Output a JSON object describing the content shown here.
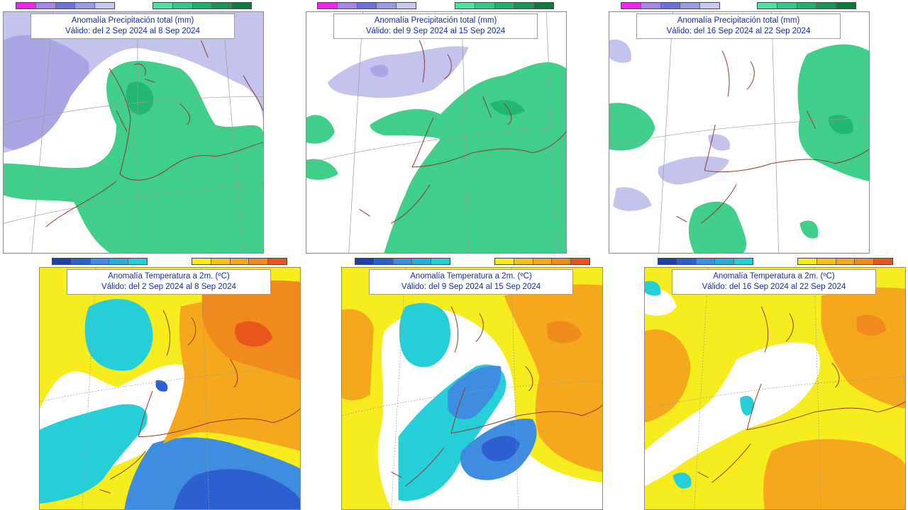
{
  "colors": {
    "precip_wet_light": "#3fcf8a",
    "precip_wet_medium": "#22b872",
    "precip_dry_light": "#c3c3ee",
    "precip_dry_medium": "#a9a6e3",
    "temp_warm_light": "#f7ec1e",
    "temp_warm_medium": "#f5a81e",
    "temp_warm_strong": "#f08a1c",
    "temp_warm_extreme": "#e8561c",
    "temp_cold_light": "#26cfd8",
    "temp_cold_medium": "#3e8de0",
    "temp_cold_strong": "#2d5fd0",
    "coastline": "#8c3a2a",
    "graticule": "#9a9a9a"
  },
  "precip_legend": {
    "dry_colors": [
      "#ee26ea",
      "#a884e8",
      "#6f6fdc",
      "#9a9ae8",
      "#c8c8f0"
    ],
    "wet_colors": [
      "#4fe0a6",
      "#38c98a",
      "#22b06d",
      "#15955a",
      "#0c7a3e"
    ]
  },
  "temp_legend": {
    "cold_colors": [
      "#1e40b0",
      "#2d5fd0",
      "#3e8de0",
      "#26b0e0",
      "#26cfd8"
    ],
    "warm_colors": [
      "#f7ec1e",
      "#f5c21e",
      "#f5a81e",
      "#f08a1c",
      "#e8561c"
    ]
  },
  "precip_panels": [
    {
      "title": "Anomalía Precipitación total (mm)",
      "subtitle": "Válido: del 2 Sep 2024 al 8 Sep 2024"
    },
    {
      "title": "Anomalía Precipitación total (mm)",
      "subtitle": "Válido: del 9 Sep 2024 al 15 Sep 2024"
    },
    {
      "title": "Anomalía Precipitación total (mm)",
      "subtitle": "Válido: del 16 Sep 2024 al 22 Sep 2024"
    }
  ],
  "temp_panels": [
    {
      "title": "Anomalía Temperatura a 2m. (ºC)",
      "subtitle": "Válido: del 2 Sep 2024 al 8 Sep 2024"
    },
    {
      "title": "Anomalía Temperatura a 2m. (ºC)",
      "subtitle": "Válido: del 9 Sep 2024 al 15 Sep 2024"
    },
    {
      "title": "Anomalía Temperatura a 2m. (ºC)",
      "subtitle": "Válido: del 16 Sep 2024 al 22 Sep 2024"
    }
  ]
}
